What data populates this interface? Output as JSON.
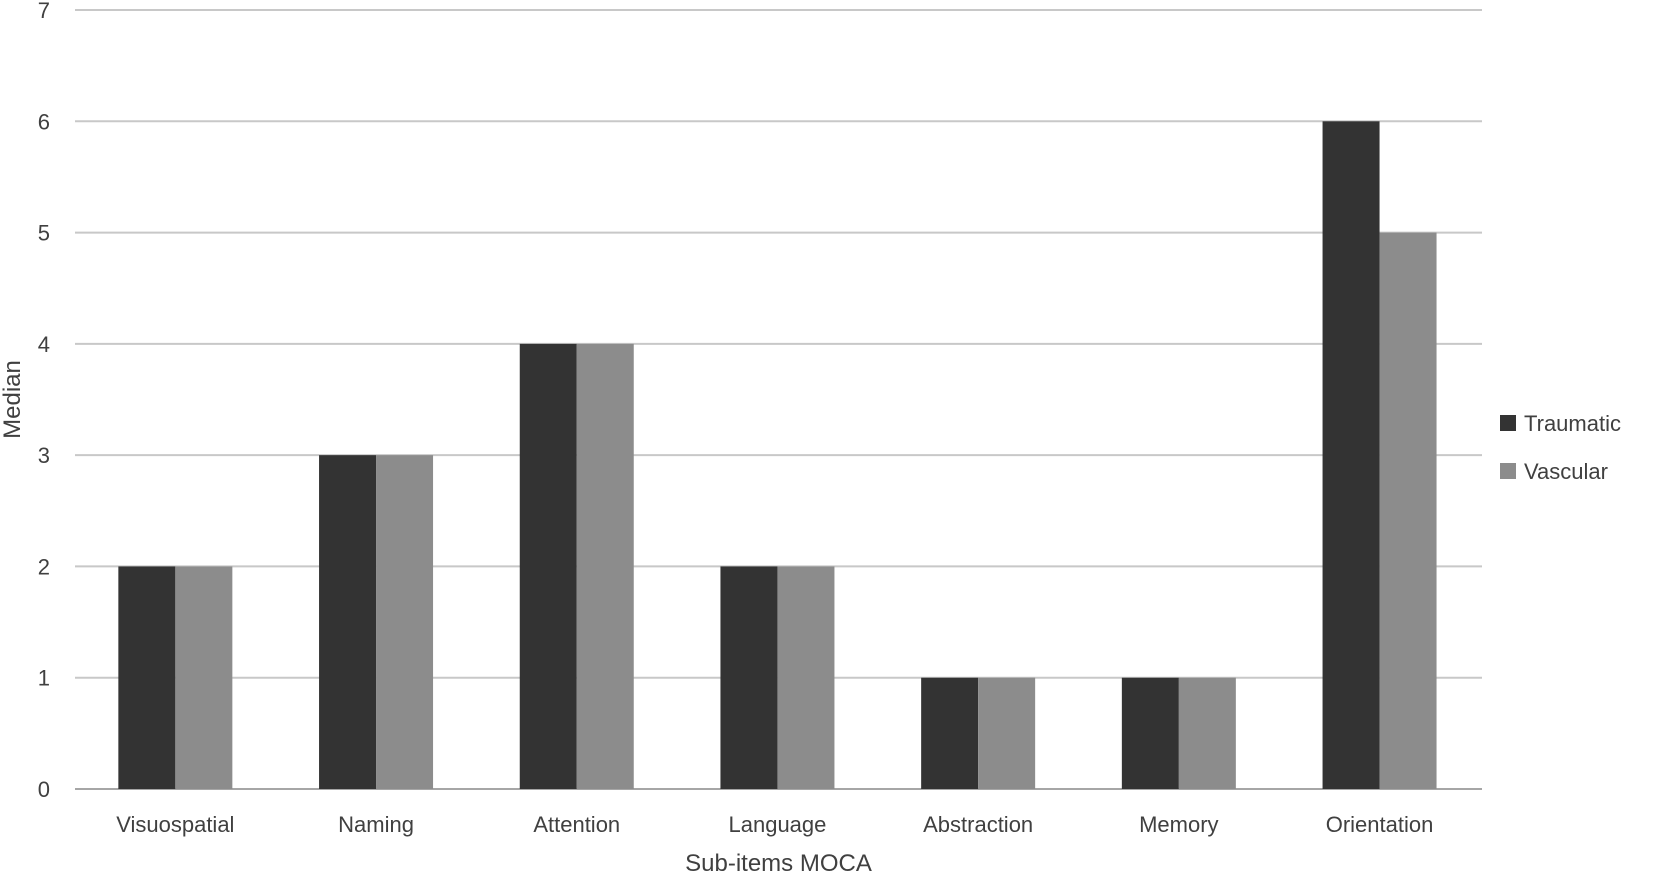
{
  "chart_data": {
    "type": "bar",
    "categories": [
      "Visuospatial",
      "Naming",
      "Attention",
      "Language",
      "Abstraction",
      "Memory",
      "Orientation"
    ],
    "series": [
      {
        "name": "Traumatic",
        "color": "#333333",
        "values": [
          2,
          3,
          4,
          2,
          1,
          1,
          6
        ]
      },
      {
        "name": "Vascular",
        "color": "#8c8c8c",
        "values": [
          2,
          3,
          4,
          2,
          1,
          1,
          5
        ]
      }
    ],
    "xlabel": "Sub-items MOCA",
    "ylabel": "Median",
    "ylim": [
      0,
      7
    ],
    "yticks": [
      0,
      1,
      2,
      3,
      4,
      5,
      6,
      7
    ],
    "grid": true,
    "legend_position": "right"
  }
}
